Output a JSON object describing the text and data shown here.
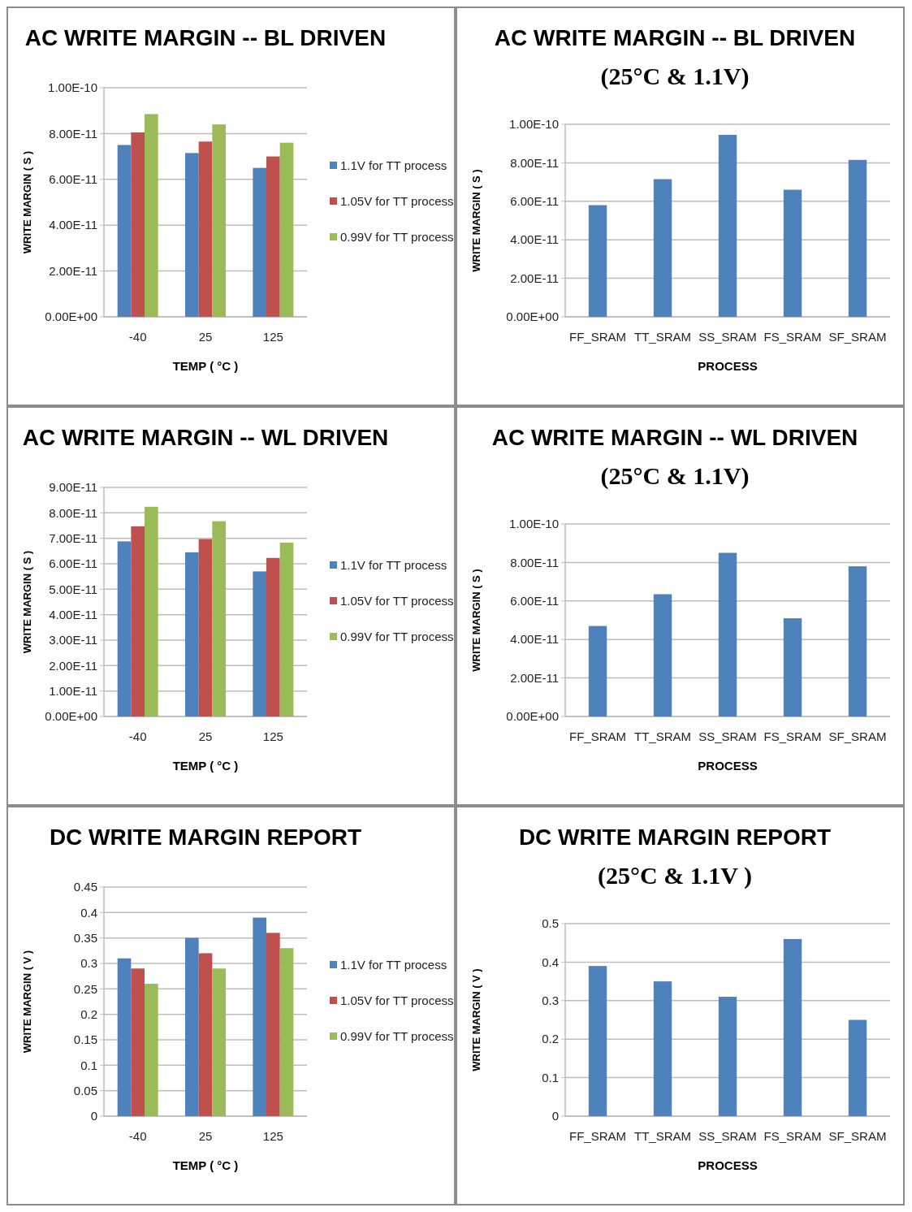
{
  "chart_data": [
    {
      "type": "bar",
      "title": "AC WRITE MARGIN -- BL DRIVEN",
      "xlabel": "TEMP ( °C )",
      "ylabel": "WRITE MARGIN ( S )",
      "categories": [
        "-40",
        "25",
        "125"
      ],
      "series": [
        {
          "name": "1.1V for TT process",
          "color": "#4f81bd",
          "values": [
            7.5e-11,
            7.15e-11,
            6.5e-11
          ]
        },
        {
          "name": "1.05V for TT process",
          "color": "#c0504d",
          "values": [
            8.05e-11,
            7.65e-11,
            7e-11
          ]
        },
        {
          "name": "0.99V for TT process",
          "color": "#9bbb59",
          "values": [
            8.85e-11,
            8.4e-11,
            7.6e-11
          ]
        }
      ],
      "ylim": [
        0,
        1e-10
      ],
      "yticks": [
        {
          "value": 0,
          "label": "0.00E+00"
        },
        {
          "value": 2e-11,
          "label": "2.00E-11"
        },
        {
          "value": 4e-11,
          "label": "4.00E-11"
        },
        {
          "value": 6e-11,
          "label": "6.00E-11"
        },
        {
          "value": 8e-11,
          "label": "8.00E-11"
        },
        {
          "value": 1e-10,
          "label": "1.00E-10"
        }
      ],
      "grid": "y",
      "legend": "right"
    },
    {
      "type": "bar",
      "title": "AC WRITE MARGIN -- BL DRIVEN",
      "subtitle": "(25°C & 1.1V)",
      "xlabel": "PROCESS",
      "ylabel": "WRITE MARGIN ( S )",
      "categories": [
        "FF_SRAM",
        "TT_SRAM",
        "SS_SRAM",
        "FS_SRAM",
        "SF_SRAM"
      ],
      "series": [
        {
          "color": "#4f81bd",
          "values": [
            5.8e-11,
            7.15e-11,
            9.45e-11,
            6.6e-11,
            8.15e-11
          ]
        }
      ],
      "ylim": [
        0,
        1e-10
      ],
      "yticks": [
        {
          "value": 0,
          "label": "0.00E+00"
        },
        {
          "value": 2e-11,
          "label": "2.00E-11"
        },
        {
          "value": 4e-11,
          "label": "4.00E-11"
        },
        {
          "value": 6e-11,
          "label": "6.00E-11"
        },
        {
          "value": 8e-11,
          "label": "8.00E-11"
        },
        {
          "value": 1e-10,
          "label": "1.00E-10"
        }
      ],
      "grid": "y"
    },
    {
      "type": "bar",
      "title": "AC WRITE MARGIN -- WL DRIVEN",
      "xlabel": "TEMP ( °C )",
      "ylabel": "WRITE MARGIN ( S )",
      "categories": [
        "-40",
        "25",
        "125"
      ],
      "series": [
        {
          "name": "1.1V for TT process",
          "color": "#4f81bd",
          "values": [
            6.88e-11,
            6.45e-11,
            5.7e-11
          ]
        },
        {
          "name": "1.05V for TT process",
          "color": "#c0504d",
          "values": [
            7.47e-11,
            6.97e-11,
            6.23e-11
          ]
        },
        {
          "name": "0.99V for TT process",
          "color": "#9bbb59",
          "values": [
            8.24e-11,
            7.67e-11,
            6.83e-11
          ]
        }
      ],
      "ylim": [
        0,
        9e-11
      ],
      "yticks": [
        {
          "value": 0,
          "label": "0.00E+00"
        },
        {
          "value": 1e-11,
          "label": "1.00E-11"
        },
        {
          "value": 2e-11,
          "label": "2.00E-11"
        },
        {
          "value": 3e-11,
          "label": "3.00E-11"
        },
        {
          "value": 4e-11,
          "label": "4.00E-11"
        },
        {
          "value": 5e-11,
          "label": "5.00E-11"
        },
        {
          "value": 6e-11,
          "label": "6.00E-11"
        },
        {
          "value": 7e-11,
          "label": "7.00E-11"
        },
        {
          "value": 8e-11,
          "label": "8.00E-11"
        },
        {
          "value": 9e-11,
          "label": "9.00E-11"
        }
      ],
      "grid": "y",
      "legend": "right"
    },
    {
      "type": "bar",
      "title": "AC WRITE MARGIN -- WL DRIVEN",
      "subtitle": "(25°C & 1.1V)",
      "xlabel": "PROCESS",
      "ylabel": "WRITE MARGIN ( S )",
      "categories": [
        "FF_SRAM",
        "TT_SRAM",
        "SS_SRAM",
        "FS_SRAM",
        "SF_SRAM"
      ],
      "series": [
        {
          "color": "#4f81bd",
          "values": [
            4.7e-11,
            6.35e-11,
            8.5e-11,
            5.1e-11,
            7.8e-11
          ]
        }
      ],
      "ylim": [
        0,
        1e-10
      ],
      "yticks": [
        {
          "value": 0,
          "label": "0.00E+00"
        },
        {
          "value": 2e-11,
          "label": "2.00E-11"
        },
        {
          "value": 4e-11,
          "label": "4.00E-11"
        },
        {
          "value": 6e-11,
          "label": "6.00E-11"
        },
        {
          "value": 8e-11,
          "label": "8.00E-11"
        },
        {
          "value": 1e-10,
          "label": "1.00E-10"
        }
      ],
      "grid": "y"
    },
    {
      "type": "bar",
      "title": "DC WRITE MARGIN REPORT",
      "xlabel": "TEMP ( °C )",
      "ylabel": "WRITE MARGIN ( V )",
      "categories": [
        "-40",
        "25",
        "125"
      ],
      "series": [
        {
          "name": "1.1V for TT process",
          "color": "#4f81bd",
          "values": [
            0.31,
            0.35,
            0.39
          ]
        },
        {
          "name": "1.05V for TT process",
          "color": "#c0504d",
          "values": [
            0.29,
            0.32,
            0.36
          ]
        },
        {
          "name": "0.99V for TT process",
          "color": "#9bbb59",
          "values": [
            0.26,
            0.29,
            0.33
          ]
        }
      ],
      "ylim": [
        0,
        0.45
      ],
      "yticks": [
        0,
        0.05,
        0.1,
        0.15,
        0.2,
        0.25,
        0.3,
        0.35,
        0.4,
        0.45
      ],
      "grid": "y",
      "legend": "right"
    },
    {
      "type": "bar",
      "title": "DC WRITE MARGIN REPORT",
      "subtitle": "(25°C & 1.1V )",
      "xlabel": "PROCESS",
      "ylabel": "WRITE MARGIN ( V )",
      "categories": [
        "FF_SRAM",
        "TT_SRAM",
        "SS_SRAM",
        "FS_SRAM",
        "SF_SRAM"
      ],
      "series": [
        {
          "color": "#4f81bd",
          "values": [
            0.39,
            0.35,
            0.31,
            0.46,
            0.25
          ]
        }
      ],
      "ylim": [
        0,
        0.5
      ],
      "yticks": [
        0,
        0.1,
        0.2,
        0.3,
        0.4,
        0.5
      ],
      "grid": "y"
    }
  ]
}
